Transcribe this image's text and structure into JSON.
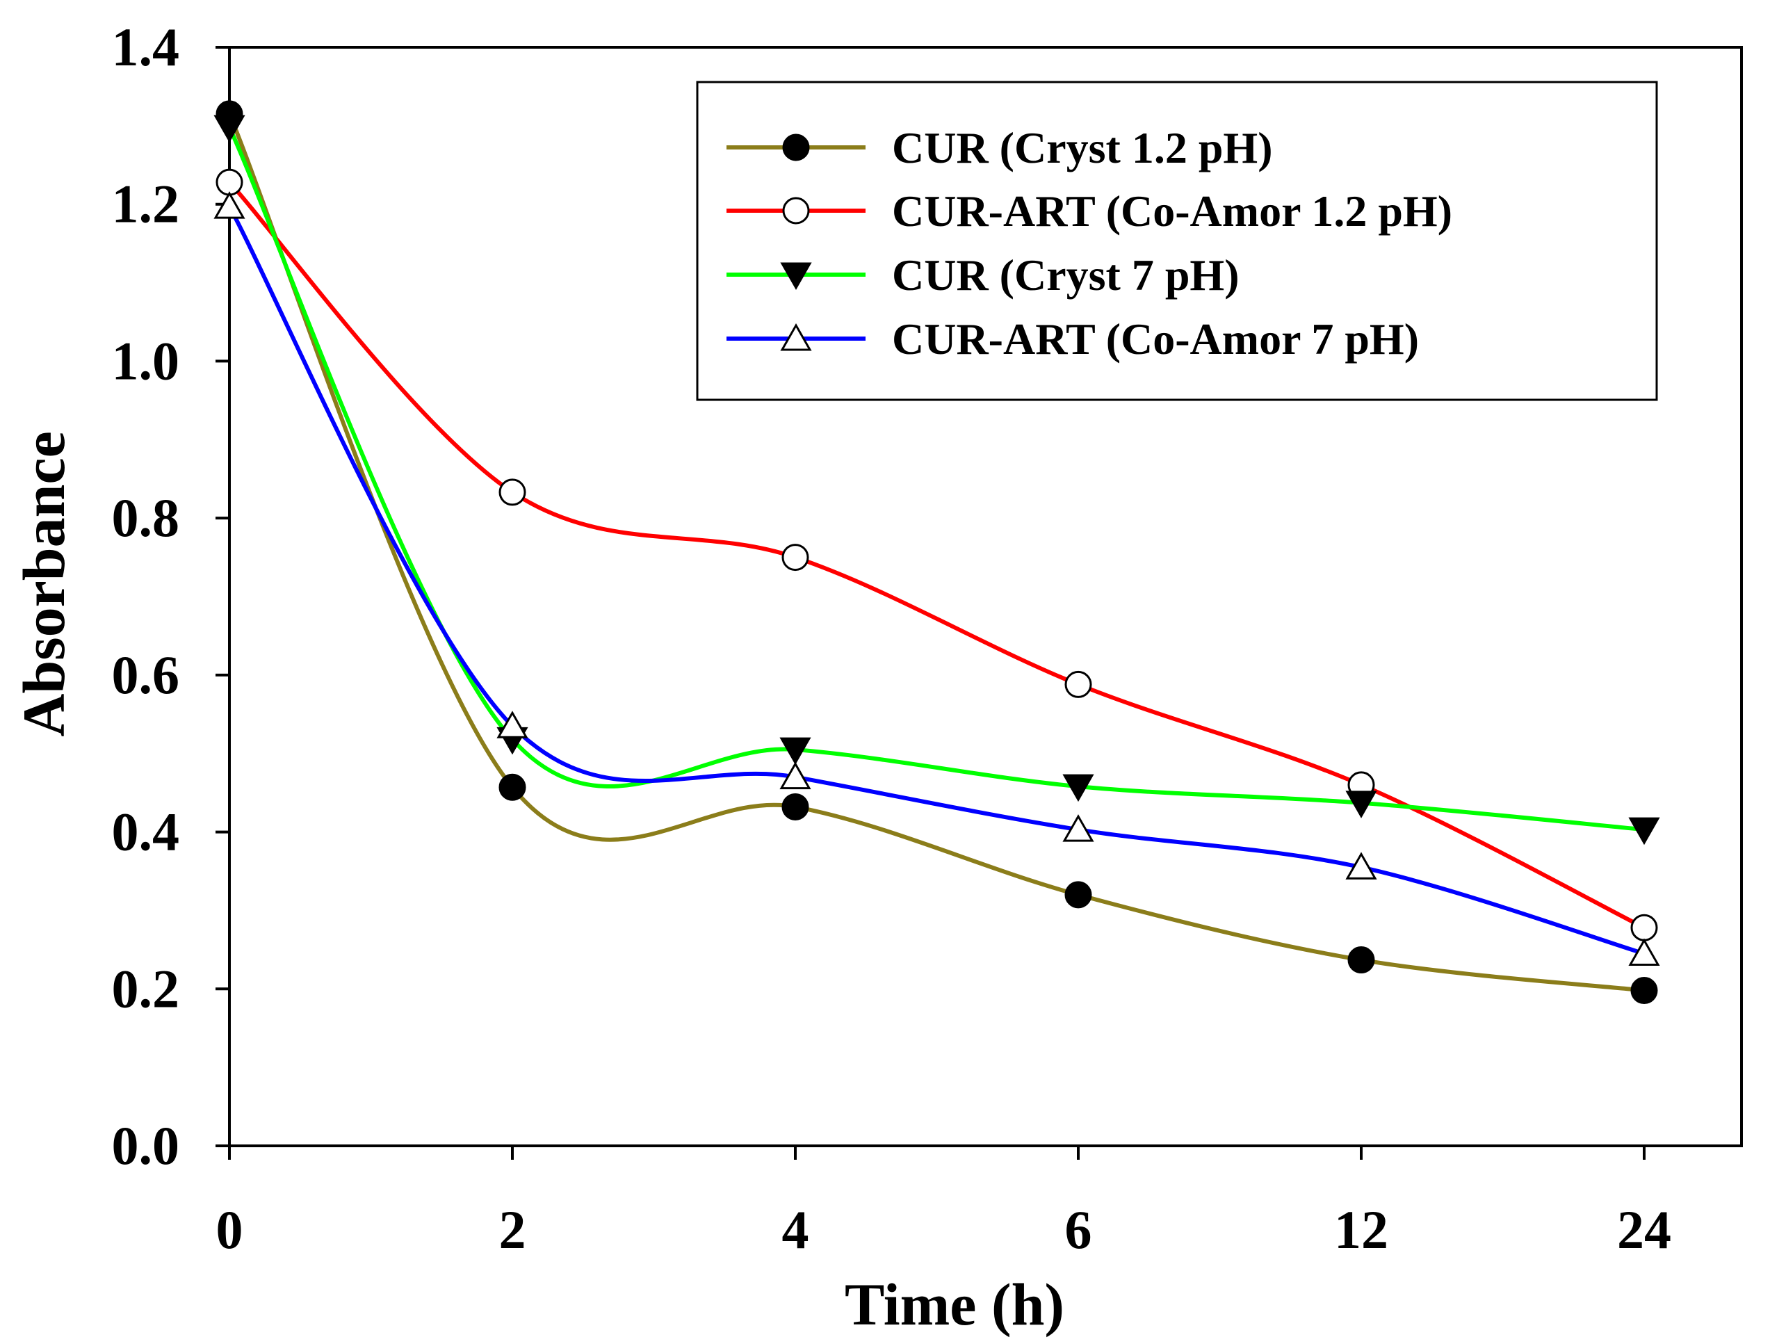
{
  "chart_data": {
    "type": "line",
    "title": "",
    "xlabel": "Time (h)",
    "ylabel": "Absorbance",
    "categories": [
      "0",
      "2",
      "4",
      "6",
      "12",
      "24"
    ],
    "ylim": [
      0.0,
      1.4
    ],
    "yticks": [
      "0.0",
      "0.2",
      "0.4",
      "0.6",
      "0.8",
      "1.0",
      "1.2",
      "1.4"
    ],
    "grid": false,
    "legend_position": "top-right",
    "series": [
      {
        "name": "CUR (Cryst 1.2 pH)",
        "color": "#8b7d1a",
        "marker": "filled-circle",
        "values": [
          1.315,
          0.457,
          0.432,
          0.32,
          0.237,
          0.198
        ]
      },
      {
        "name": "CUR-ART (Co-Amor 1.2 pH)",
        "color": "#ff0000",
        "marker": "open-circle",
        "values": [
          1.228,
          0.833,
          0.75,
          0.588,
          0.46,
          0.278
        ]
      },
      {
        "name": "CUR (Cryst 7 pH)",
        "color": "#00ff00",
        "marker": "filled-triangle-down",
        "values": [
          1.298,
          0.518,
          0.505,
          0.458,
          0.437,
          0.403
        ]
      },
      {
        "name": "CUR-ART (Co-Amor 7 pH)",
        "color": "#0000ff",
        "marker": "open-triangle-up",
        "values": [
          1.197,
          0.535,
          0.47,
          0.403,
          0.355,
          0.245
        ]
      }
    ]
  }
}
